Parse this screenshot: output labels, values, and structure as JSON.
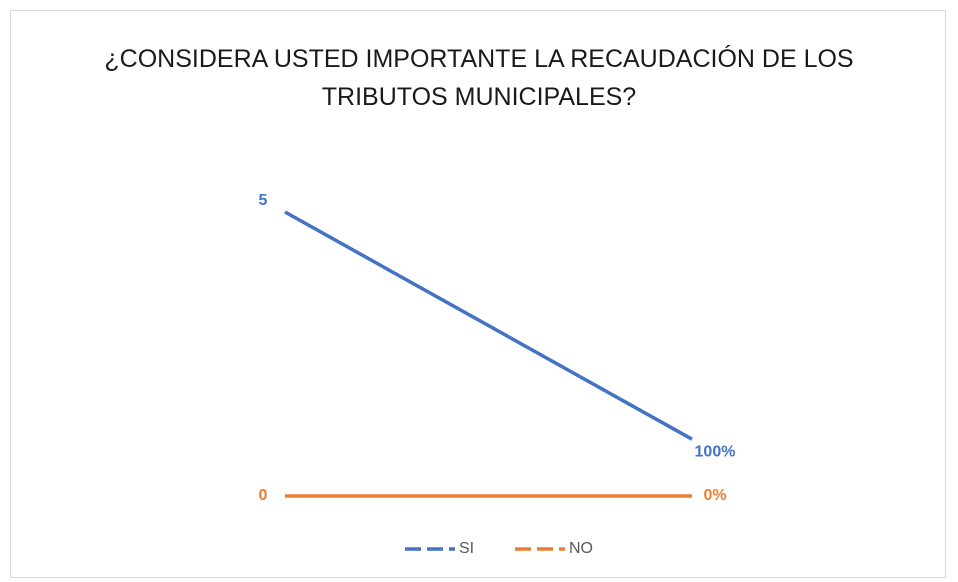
{
  "chart_data": {
    "type": "line",
    "title": "¿CONSIDERA USTED IMPORTANTE LA RECAUDACIÓN DE LOS TRIBUTOS MUNICIPALES?",
    "categories": [
      null,
      null
    ],
    "series": [
      {
        "name": "SI",
        "color": "#4472c4",
        "values": [
          5,
          1
        ],
        "value_labels": [
          "5",
          "100%"
        ]
      },
      {
        "name": "NO",
        "color": "#ed7d31",
        "values": [
          0,
          0
        ],
        "value_labels": [
          "0",
          "0%"
        ]
      }
    ],
    "legend": "bottom"
  }
}
